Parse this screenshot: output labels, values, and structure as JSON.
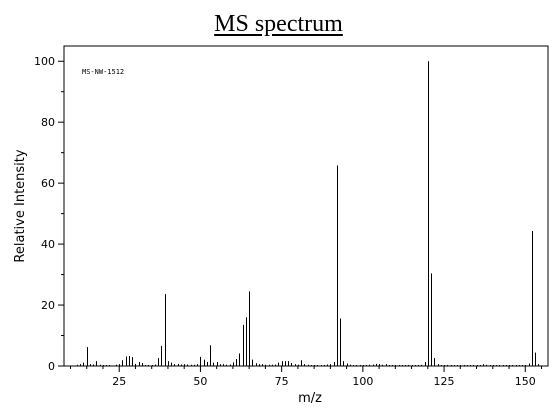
{
  "chart_data": {
    "type": "bar",
    "title": "MS spectrum",
    "xlabel": "m/z",
    "ylabel": "Relative Intensity",
    "annotation": "MS-NW-1512",
    "xlim": [
      8,
      157
    ],
    "ylim": [
      0,
      105
    ],
    "xticks": [
      25,
      50,
      75,
      100,
      125,
      150
    ],
    "yticks": [
      0,
      20,
      40,
      60,
      80,
      100
    ],
    "grid": false,
    "legend": "none",
    "colors": {
      "line": "#000000",
      "background": "#ffffff"
    },
    "peaks": [
      {
        "x": 12,
        "y": 0.4
      },
      {
        "x": 13,
        "y": 0.6
      },
      {
        "x": 14,
        "y": 1.1
      },
      {
        "x": 15,
        "y": 6.2
      },
      {
        "x": 16,
        "y": 0.6
      },
      {
        "x": 17,
        "y": 0.5
      },
      {
        "x": 18,
        "y": 1.6
      },
      {
        "x": 19,
        "y": 0.4
      },
      {
        "x": 20,
        "y": 0.3
      },
      {
        "x": 21,
        "y": 0.3
      },
      {
        "x": 22,
        "y": 0.3
      },
      {
        "x": 24,
        "y": 0.4
      },
      {
        "x": 25,
        "y": 0.6
      },
      {
        "x": 26,
        "y": 1.9
      },
      {
        "x": 27,
        "y": 3.1
      },
      {
        "x": 28,
        "y": 3.3
      },
      {
        "x": 29,
        "y": 2.9
      },
      {
        "x": 30,
        "y": 0.7
      },
      {
        "x": 31,
        "y": 1.3
      },
      {
        "x": 32,
        "y": 1.0
      },
      {
        "x": 33,
        "y": 0.3
      },
      {
        "x": 34,
        "y": 0.3
      },
      {
        "x": 35,
        "y": 0.3
      },
      {
        "x": 36,
        "y": 0.5
      },
      {
        "x": 37,
        "y": 2.6
      },
      {
        "x": 38,
        "y": 6.6
      },
      {
        "x": 39,
        "y": 23.6
      },
      {
        "x": 40,
        "y": 1.6
      },
      {
        "x": 41,
        "y": 1.1
      },
      {
        "x": 42,
        "y": 0.6
      },
      {
        "x": 43,
        "y": 0.7
      },
      {
        "x": 44,
        "y": 0.5
      },
      {
        "x": 45,
        "y": 0.6
      },
      {
        "x": 46,
        "y": 0.5
      },
      {
        "x": 47,
        "y": 0.4
      },
      {
        "x": 48,
        "y": 0.4
      },
      {
        "x": 49,
        "y": 0.6
      },
      {
        "x": 50,
        "y": 3.0
      },
      {
        "x": 51,
        "y": 2.1
      },
      {
        "x": 52,
        "y": 1.3
      },
      {
        "x": 53,
        "y": 6.8
      },
      {
        "x": 54,
        "y": 1.1
      },
      {
        "x": 55,
        "y": 1.3
      },
      {
        "x": 56,
        "y": 0.6
      },
      {
        "x": 57,
        "y": 0.6
      },
      {
        "x": 58,
        "y": 0.4
      },
      {
        "x": 59,
        "y": 0.5
      },
      {
        "x": 60,
        "y": 1.2
      },
      {
        "x": 61,
        "y": 2.3
      },
      {
        "x": 62,
        "y": 4.1
      },
      {
        "x": 63,
        "y": 13.5
      },
      {
        "x": 64,
        "y": 16.0
      },
      {
        "x": 65,
        "y": 24.5
      },
      {
        "x": 66,
        "y": 2.1
      },
      {
        "x": 67,
        "y": 0.9
      },
      {
        "x": 68,
        "y": 0.6
      },
      {
        "x": 69,
        "y": 0.6
      },
      {
        "x": 70,
        "y": 0.4
      },
      {
        "x": 71,
        "y": 0.4
      },
      {
        "x": 72,
        "y": 0.4
      },
      {
        "x": 73,
        "y": 0.5
      },
      {
        "x": 74,
        "y": 1.1
      },
      {
        "x": 75,
        "y": 1.6
      },
      {
        "x": 76,
        "y": 1.6
      },
      {
        "x": 77,
        "y": 1.6
      },
      {
        "x": 78,
        "y": 1.0
      },
      {
        "x": 79,
        "y": 0.6
      },
      {
        "x": 80,
        "y": 0.4
      },
      {
        "x": 81,
        "y": 1.9
      },
      {
        "x": 82,
        "y": 0.6
      },
      {
        "x": 83,
        "y": 0.4
      },
      {
        "x": 84,
        "y": 0.3
      },
      {
        "x": 85,
        "y": 0.3
      },
      {
        "x": 86,
        "y": 0.3
      },
      {
        "x": 87,
        "y": 0.3
      },
      {
        "x": 88,
        "y": 0.3
      },
      {
        "x": 89,
        "y": 0.5
      },
      {
        "x": 90,
        "y": 0.6
      },
      {
        "x": 91,
        "y": 1.3
      },
      {
        "x": 92,
        "y": 65.8
      },
      {
        "x": 93,
        "y": 15.6
      },
      {
        "x": 94,
        "y": 1.6
      },
      {
        "x": 95,
        "y": 0.8
      },
      {
        "x": 96,
        "y": 0.4
      },
      {
        "x": 97,
        "y": 0.3
      },
      {
        "x": 98,
        "y": 0.3
      },
      {
        "x": 99,
        "y": 0.3
      },
      {
        "x": 100,
        "y": 0.3
      },
      {
        "x": 101,
        "y": 0.3
      },
      {
        "x": 102,
        "y": 0.4
      },
      {
        "x": 103,
        "y": 0.5
      },
      {
        "x": 104,
        "y": 0.7
      },
      {
        "x": 105,
        "y": 0.6
      },
      {
        "x": 106,
        "y": 0.4
      },
      {
        "x": 107,
        "y": 0.6
      },
      {
        "x": 108,
        "y": 0.3
      },
      {
        "x": 109,
        "y": 0.3
      },
      {
        "x": 110,
        "y": 0.3
      },
      {
        "x": 111,
        "y": 0.3
      },
      {
        "x": 112,
        "y": 0.3
      },
      {
        "x": 113,
        "y": 0.3
      },
      {
        "x": 114,
        "y": 0.3
      },
      {
        "x": 115,
        "y": 0.3
      },
      {
        "x": 116,
        "y": 0.3
      },
      {
        "x": 117,
        "y": 0.3
      },
      {
        "x": 118,
        "y": 0.4
      },
      {
        "x": 119,
        "y": 1.3
      },
      {
        "x": 120,
        "y": 100.0
      },
      {
        "x": 121,
        "y": 30.4
      },
      {
        "x": 122,
        "y": 2.6
      },
      {
        "x": 123,
        "y": 0.6
      },
      {
        "x": 124,
        "y": 0.3
      },
      {
        "x": 125,
        "y": 0.3
      },
      {
        "x": 126,
        "y": 0.3
      },
      {
        "x": 127,
        "y": 0.3
      },
      {
        "x": 128,
        "y": 0.3
      },
      {
        "x": 129,
        "y": 0.3
      },
      {
        "x": 130,
        "y": 0.3
      },
      {
        "x": 131,
        "y": 0.3
      },
      {
        "x": 132,
        "y": 0.3
      },
      {
        "x": 133,
        "y": 0.3
      },
      {
        "x": 134,
        "y": 0.3
      },
      {
        "x": 135,
        "y": 0.3
      },
      {
        "x": 136,
        "y": 0.3
      },
      {
        "x": 137,
        "y": 0.6
      },
      {
        "x": 138,
        "y": 0.4
      },
      {
        "x": 139,
        "y": 0.3
      },
      {
        "x": 140,
        "y": 0.3
      },
      {
        "x": 141,
        "y": 0.3
      },
      {
        "x": 142,
        "y": 0.3
      },
      {
        "x": 143,
        "y": 0.3
      },
      {
        "x": 144,
        "y": 0.3
      },
      {
        "x": 145,
        "y": 0.3
      },
      {
        "x": 146,
        "y": 0.3
      },
      {
        "x": 147,
        "y": 0.3
      },
      {
        "x": 148,
        "y": 0.3
      },
      {
        "x": 149,
        "y": 0.3
      },
      {
        "x": 150,
        "y": 0.3
      },
      {
        "x": 151,
        "y": 0.8
      },
      {
        "x": 152,
        "y": 44.3
      },
      {
        "x": 153,
        "y": 4.4
      },
      {
        "x": 154,
        "y": 0.6
      }
    ]
  }
}
